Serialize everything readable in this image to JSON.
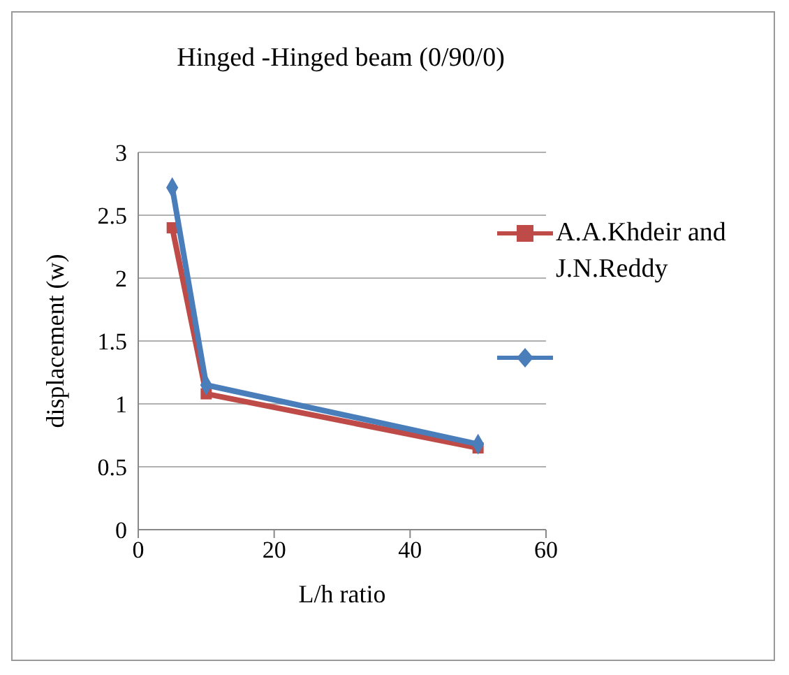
{
  "chart_data": {
    "type": "line",
    "title": "Hinged -Hinged beam (0/90/0)",
    "xlabel": "L/h ratio",
    "ylabel": "displacement (w)",
    "x": [
      5,
      10,
      50
    ],
    "series": [
      {
        "name": "A.A.Khdeir and J.N.Reddy",
        "color": "#be4b48",
        "values": [
          2.4,
          1.08,
          0.65
        ],
        "marker": "square"
      },
      {
        "color": "#4a7ebb",
        "values": [
          2.72,
          1.15,
          0.68
        ],
        "marker": "diamond"
      }
    ],
    "xlim": [
      0,
      60
    ],
    "xticks": [
      0,
      20,
      40,
      60
    ],
    "ylim": [
      0,
      3
    ],
    "yticks": [
      0,
      0.5,
      1,
      1.5,
      2,
      2.5,
      3
    ],
    "grid": "y",
    "legend": "right"
  }
}
